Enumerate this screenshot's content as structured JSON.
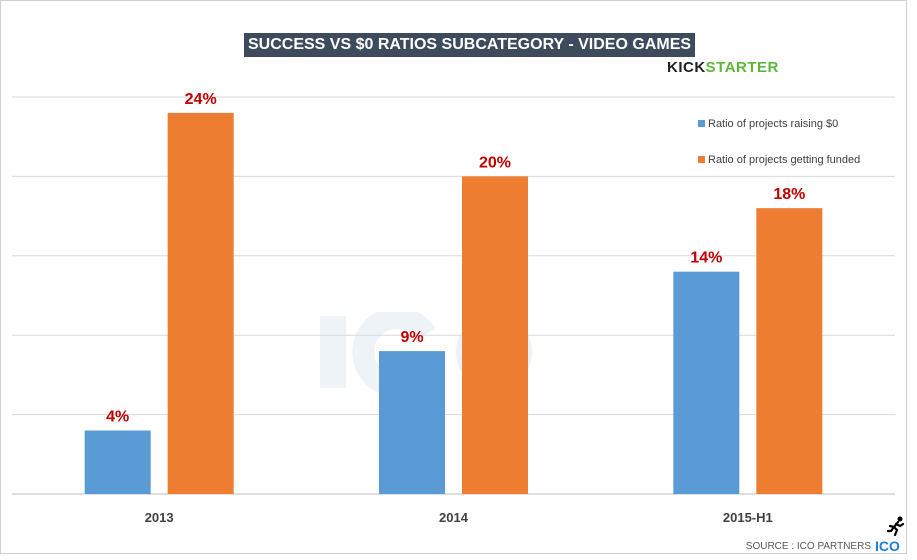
{
  "chart_data": {
    "type": "bar",
    "title": "SUCCESS VS $0 RATIOS SUBCATEGORY - VIDEO GAMES",
    "categories": [
      "2013",
      "2014",
      "2015-H1"
    ],
    "series": [
      {
        "name": "Ratio of projects raising $0",
        "values": [
          4,
          9,
          14
        ],
        "labels": [
          "4%",
          "9%",
          "14%"
        ],
        "color": "#5b9bd5"
      },
      {
        "name": "Ratio of projects getting funded",
        "values": [
          24,
          20,
          18
        ],
        "labels": [
          "24%",
          "20%",
          "18%"
        ],
        "color": "#ed7d31"
      }
    ],
    "ylim": [
      0,
      25
    ],
    "ygrid_step": 5,
    "grid": true,
    "y_tick_labels_shown": false,
    "data_label_color": "#c00000",
    "legend_placement": "top-right"
  },
  "logo": {
    "kick": "KICK",
    "starter": "STARTER"
  },
  "source": "SOURCE : ICO PARTNERS",
  "ico_logo": "ICO",
  "watermark": "ICO"
}
